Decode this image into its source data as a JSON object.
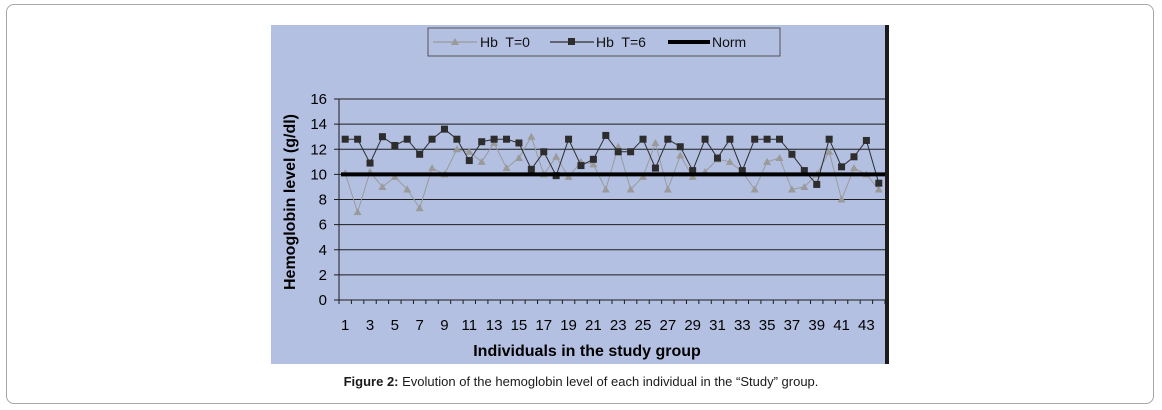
{
  "caption": {
    "label": "Figure 2:",
    "text": " Evolution of the hemoglobin level of each individual in the “Study” group."
  },
  "chart_data": {
    "type": "line",
    "xlabel": "Individuals in the study group",
    "ylabel": "Hemoglobin level (g/dl)",
    "ylim": [
      0,
      16
    ],
    "yticks": [
      0,
      2,
      4,
      6,
      8,
      10,
      12,
      14,
      16
    ],
    "x": [
      1,
      2,
      3,
      4,
      5,
      6,
      7,
      8,
      9,
      10,
      11,
      12,
      13,
      14,
      15,
      16,
      17,
      18,
      19,
      20,
      21,
      22,
      23,
      24,
      25,
      26,
      27,
      28,
      29,
      30,
      31,
      32,
      33,
      34,
      35,
      36,
      37,
      38,
      39,
      40,
      41,
      42,
      43,
      44
    ],
    "xtick_labels": [
      "1",
      "3",
      "5",
      "7",
      "9",
      "11",
      "13",
      "15",
      "17",
      "19",
      "21",
      "23",
      "25",
      "27",
      "29",
      "31",
      "33",
      "35",
      "37",
      "39",
      "41",
      "43"
    ],
    "grid": true,
    "legend_position": "top",
    "series": [
      {
        "name": "Hb  T=0",
        "marker": "triangle",
        "color": "#9a9a9a",
        "values": [
          10.1,
          7.0,
          10.2,
          9.0,
          9.8,
          8.8,
          7.3,
          10.5,
          10.0,
          12.0,
          11.8,
          11.0,
          12.5,
          10.5,
          11.3,
          13.0,
          10.0,
          11.4,
          9.8,
          11.0,
          10.8,
          8.8,
          12.2,
          8.8,
          9.8,
          12.5,
          8.8,
          11.5,
          9.8,
          10.2,
          11.2,
          11.0,
          10.2,
          8.8,
          11.0,
          11.3,
          8.8,
          9.0,
          10.0,
          11.8,
          8.0,
          10.5,
          10.0,
          8.8
        ]
      },
      {
        "name": "Hb  T=6",
        "marker": "square",
        "color": "#2d2d2d",
        "values": [
          12.8,
          12.8,
          10.9,
          13.0,
          12.3,
          12.8,
          11.6,
          12.8,
          13.6,
          12.8,
          11.1,
          12.6,
          12.8,
          12.8,
          12.5,
          10.4,
          11.8,
          9.9,
          12.8,
          10.7,
          11.2,
          13.1,
          11.8,
          11.8,
          12.8,
          10.5,
          12.8,
          12.2,
          10.3,
          12.8,
          11.3,
          12.8,
          10.3,
          12.8,
          12.8,
          12.8,
          11.6,
          10.3,
          9.2,
          12.8,
          10.6,
          11.4,
          12.7,
          9.3
        ]
      },
      {
        "name": "Norm",
        "marker": "none",
        "color": "#000000",
        "values": [
          10,
          10,
          10,
          10,
          10,
          10,
          10,
          10,
          10,
          10,
          10,
          10,
          10,
          10,
          10,
          10,
          10,
          10,
          10,
          10,
          10,
          10,
          10,
          10,
          10,
          10,
          10,
          10,
          10,
          10,
          10,
          10,
          10,
          10,
          10,
          10,
          10,
          10,
          10,
          10,
          10,
          10,
          10,
          10
        ]
      }
    ]
  }
}
